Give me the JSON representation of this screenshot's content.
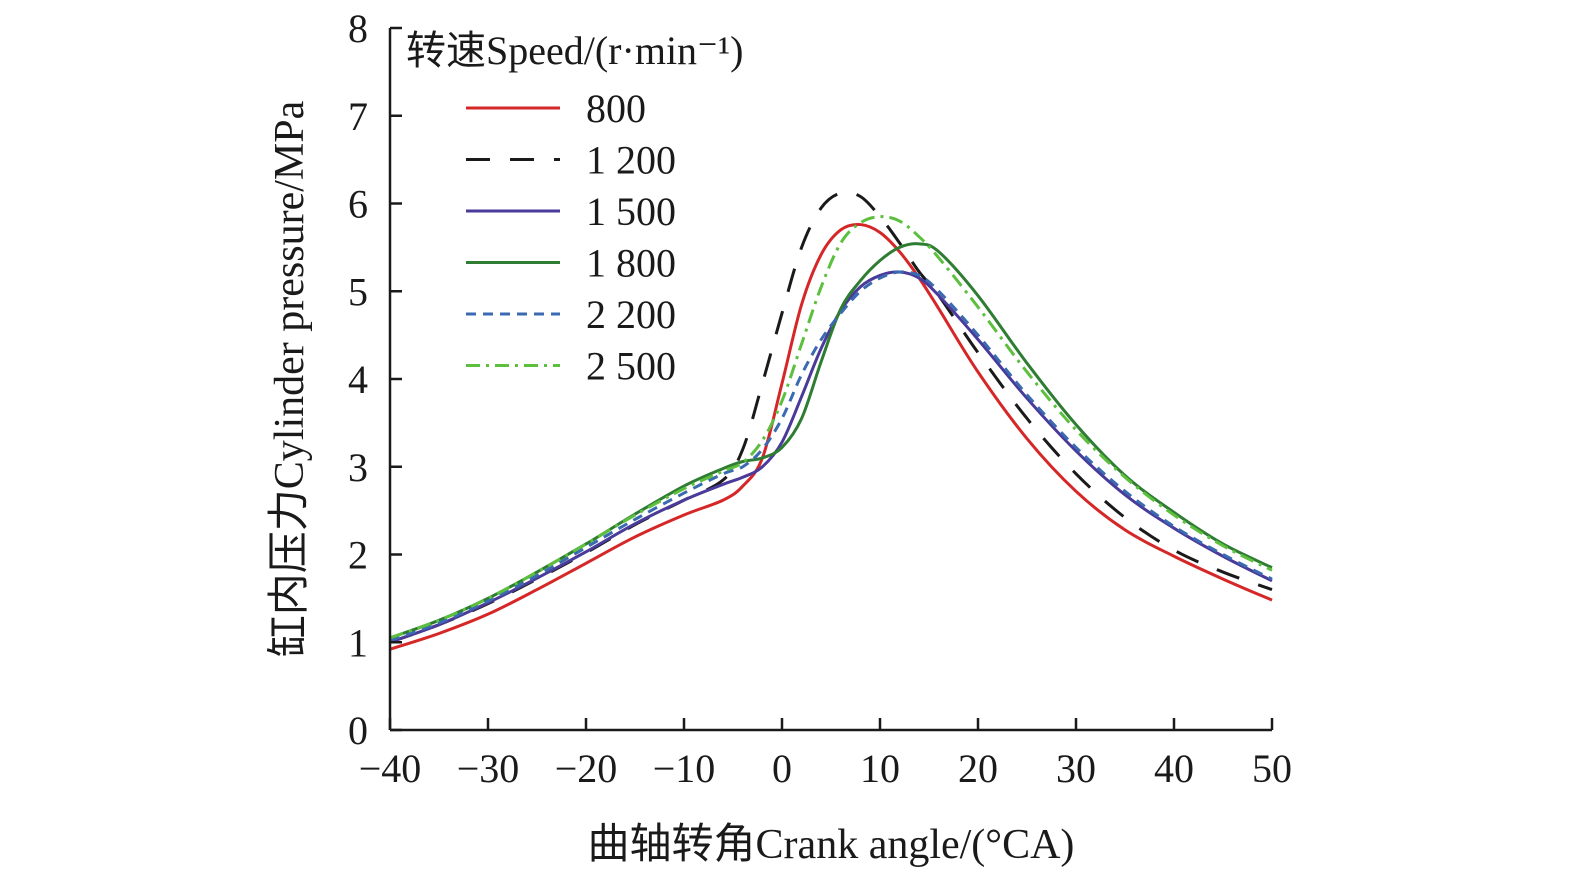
{
  "chart_data": {
    "type": "line",
    "xlabel": "曲轴转角Crank angle/(°CA)",
    "ylabel": "缸内压力Cylinder pressure/MPa",
    "xlim": [
      -40,
      50
    ],
    "ylim": [
      0,
      8
    ],
    "xticks": [
      -40,
      -30,
      -20,
      -10,
      0,
      10,
      20,
      30,
      40,
      50
    ],
    "xtick_labels": [
      "−40",
      "−30",
      "−20",
      "−10",
      "0",
      "10",
      "20",
      "30",
      "40",
      "50"
    ],
    "yticks": [
      0,
      1,
      2,
      3,
      4,
      5,
      6,
      7,
      8
    ],
    "ytick_labels": [
      "0",
      "1",
      "2",
      "3",
      "4",
      "5",
      "6",
      "7",
      "8"
    ],
    "grid": false,
    "legend": {
      "title": "转速Speed/(r·min⁻¹)",
      "placement": "top-left"
    },
    "series": [
      {
        "name": "800",
        "color": "#d62728",
        "dash": "solid",
        "points": [
          [
            -40,
            0.92
          ],
          [
            -35,
            1.1
          ],
          [
            -30,
            1.32
          ],
          [
            -25,
            1.6
          ],
          [
            -20,
            1.9
          ],
          [
            -15,
            2.2
          ],
          [
            -10,
            2.45
          ],
          [
            -6,
            2.62
          ],
          [
            -4,
            2.78
          ],
          [
            -2,
            3.1
          ],
          [
            0,
            3.95
          ],
          [
            2,
            4.85
          ],
          [
            4,
            5.42
          ],
          [
            6,
            5.7
          ],
          [
            8,
            5.76
          ],
          [
            10,
            5.67
          ],
          [
            12,
            5.45
          ],
          [
            14,
            5.15
          ],
          [
            16,
            4.8
          ],
          [
            20,
            4.08
          ],
          [
            25,
            3.32
          ],
          [
            30,
            2.72
          ],
          [
            35,
            2.28
          ],
          [
            40,
            1.98
          ],
          [
            45,
            1.72
          ],
          [
            50,
            1.48
          ]
        ]
      },
      {
        "name": "1 200",
        "color": "#1a1a1a",
        "dash": "long-dash",
        "points": [
          [
            -40,
            1.0
          ],
          [
            -35,
            1.2
          ],
          [
            -30,
            1.44
          ],
          [
            -25,
            1.72
          ],
          [
            -20,
            2.02
          ],
          [
            -15,
            2.34
          ],
          [
            -10,
            2.62
          ],
          [
            -6,
            2.85
          ],
          [
            -4,
            3.2
          ],
          [
            -2,
            3.95
          ],
          [
            0,
            4.75
          ],
          [
            2,
            5.5
          ],
          [
            4,
            5.95
          ],
          [
            6,
            6.12
          ],
          [
            8,
            6.08
          ],
          [
            10,
            5.85
          ],
          [
            12,
            5.55
          ],
          [
            14,
            5.22
          ],
          [
            16,
            4.95
          ],
          [
            20,
            4.3
          ],
          [
            25,
            3.55
          ],
          [
            30,
            2.92
          ],
          [
            35,
            2.42
          ],
          [
            40,
            2.05
          ],
          [
            45,
            1.8
          ],
          [
            50,
            1.6
          ]
        ]
      },
      {
        "name": "1 500",
        "color": "#4a3a9a",
        "dash": "solid",
        "points": [
          [
            -40,
            1.0
          ],
          [
            -35,
            1.2
          ],
          [
            -30,
            1.45
          ],
          [
            -25,
            1.73
          ],
          [
            -20,
            2.03
          ],
          [
            -15,
            2.35
          ],
          [
            -10,
            2.62
          ],
          [
            -6,
            2.8
          ],
          [
            -4,
            2.88
          ],
          [
            -2,
            3.0
          ],
          [
            0,
            3.28
          ],
          [
            2,
            3.8
          ],
          [
            4,
            4.35
          ],
          [
            6,
            4.78
          ],
          [
            8,
            5.05
          ],
          [
            10,
            5.18
          ],
          [
            12,
            5.22
          ],
          [
            14,
            5.15
          ],
          [
            16,
            4.95
          ],
          [
            20,
            4.45
          ],
          [
            25,
            3.78
          ],
          [
            30,
            3.18
          ],
          [
            35,
            2.68
          ],
          [
            40,
            2.3
          ],
          [
            45,
            1.98
          ],
          [
            50,
            1.7
          ]
        ]
      },
      {
        "name": "1 800",
        "color": "#2e7d32",
        "dash": "solid",
        "points": [
          [
            -40,
            1.05
          ],
          [
            -35,
            1.25
          ],
          [
            -30,
            1.5
          ],
          [
            -25,
            1.8
          ],
          [
            -20,
            2.12
          ],
          [
            -15,
            2.46
          ],
          [
            -10,
            2.78
          ],
          [
            -6,
            2.98
          ],
          [
            -4,
            3.06
          ],
          [
            -2,
            3.1
          ],
          [
            0,
            3.22
          ],
          [
            2,
            3.55
          ],
          [
            4,
            4.2
          ],
          [
            6,
            4.8
          ],
          [
            8,
            5.12
          ],
          [
            10,
            5.35
          ],
          [
            12,
            5.5
          ],
          [
            14,
            5.54
          ],
          [
            16,
            5.45
          ],
          [
            20,
            4.95
          ],
          [
            25,
            4.18
          ],
          [
            30,
            3.48
          ],
          [
            35,
            2.9
          ],
          [
            40,
            2.48
          ],
          [
            45,
            2.12
          ],
          [
            50,
            1.85
          ]
        ]
      },
      {
        "name": "2 200",
        "color": "#3a6ab0",
        "dash": "short-dash",
        "points": [
          [
            -40,
            1.02
          ],
          [
            -35,
            1.22
          ],
          [
            -30,
            1.47
          ],
          [
            -25,
            1.76
          ],
          [
            -20,
            2.08
          ],
          [
            -15,
            2.4
          ],
          [
            -10,
            2.7
          ],
          [
            -6,
            2.92
          ],
          [
            -4,
            3.0
          ],
          [
            -2,
            3.2
          ],
          [
            0,
            3.55
          ],
          [
            2,
            4.05
          ],
          [
            4,
            4.45
          ],
          [
            6,
            4.75
          ],
          [
            8,
            5.0
          ],
          [
            10,
            5.15
          ],
          [
            12,
            5.22
          ],
          [
            14,
            5.18
          ],
          [
            16,
            5.0
          ],
          [
            20,
            4.5
          ],
          [
            25,
            3.82
          ],
          [
            30,
            3.22
          ],
          [
            35,
            2.72
          ],
          [
            40,
            2.32
          ],
          [
            45,
            2.0
          ],
          [
            50,
            1.72
          ]
        ]
      },
      {
        "name": "2 500",
        "color": "#5cbf3e",
        "dash": "dash-dot",
        "points": [
          [
            -40,
            1.05
          ],
          [
            -35,
            1.25
          ],
          [
            -30,
            1.5
          ],
          [
            -25,
            1.8
          ],
          [
            -20,
            2.12
          ],
          [
            -15,
            2.45
          ],
          [
            -10,
            2.75
          ],
          [
            -6,
            2.95
          ],
          [
            -4,
            3.05
          ],
          [
            -2,
            3.3
          ],
          [
            0,
            3.75
          ],
          [
            2,
            4.4
          ],
          [
            4,
            5.05
          ],
          [
            6,
            5.55
          ],
          [
            8,
            5.78
          ],
          [
            10,
            5.85
          ],
          [
            12,
            5.8
          ],
          [
            14,
            5.62
          ],
          [
            16,
            5.38
          ],
          [
            20,
            4.82
          ],
          [
            25,
            4.08
          ],
          [
            30,
            3.42
          ],
          [
            35,
            2.88
          ],
          [
            40,
            2.45
          ],
          [
            45,
            2.1
          ],
          [
            50,
            1.82
          ]
        ]
      }
    ]
  }
}
